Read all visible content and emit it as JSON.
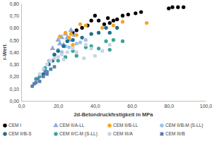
{
  "chart_data": {
    "type": "scatter",
    "x_label": "2d-Betondruckfestigkeit in MPa",
    "y_label": "r-Wert",
    "xlim": [
      0,
      100
    ],
    "xticks": [
      {
        "value": 0,
        "label": "0,0"
      },
      {
        "value": 20,
        "label": "20,0"
      },
      {
        "value": 40,
        "label": "40,0"
      },
      {
        "value": 60,
        "label": "60,0"
      },
      {
        "value": 80,
        "label": "80,0"
      },
      {
        "value": 100,
        "label": "100,0"
      }
    ],
    "ylim": [
      0,
      0.8
    ],
    "yticks": [
      {
        "value": 0,
        "label": "0,00"
      },
      {
        "value": 0.1,
        "label": "0,10"
      },
      {
        "value": 0.2,
        "label": "0,20"
      },
      {
        "value": 0.3,
        "label": "0,30"
      },
      {
        "value": 0.4,
        "label": "0,40"
      },
      {
        "value": 0.5,
        "label": "0,50"
      },
      {
        "value": 0.6,
        "label": "0,60"
      },
      {
        "value": 0.7,
        "label": "0,70"
      },
      {
        "value": 0.8,
        "label": "0,80"
      }
    ],
    "grid": false,
    "legend": "bottom",
    "series": [
      {
        "name": "CEM I",
        "color": "#000000",
        "marker": "circle",
        "x": [
          28,
          30,
          33,
          36,
          38,
          40,
          42,
          45,
          47,
          48,
          50,
          52,
          55,
          58,
          62,
          65,
          80,
          82,
          85,
          88
        ],
        "values": [
          0.56,
          0.58,
          0.6,
          0.62,
          0.66,
          0.7,
          0.66,
          0.63,
          0.68,
          0.64,
          0.66,
          0.67,
          0.7,
          0.71,
          0.72,
          0.73,
          0.76,
          0.77,
          0.77,
          0.77
        ]
      },
      {
        "name": "CEM II/A-LL",
        "color": "#8faadc",
        "marker": "triangle",
        "x": [
          17,
          20,
          21,
          22,
          23,
          24,
          25,
          26,
          27,
          29
        ],
        "values": [
          0.43,
          0.5,
          0.47,
          0.52,
          0.46,
          0.55,
          0.52,
          0.5,
          0.58,
          0.54
        ]
      },
      {
        "name": "CEM II/B-LL",
        "color": "#f5a623",
        "marker": "circle",
        "x": [
          21,
          24,
          26,
          27,
          28,
          30,
          32,
          35,
          44,
          50,
          55,
          68
        ],
        "values": [
          0.53,
          0.56,
          0.52,
          0.55,
          0.46,
          0.54,
          0.63,
          0.62,
          0.6,
          0.62,
          0.65,
          0.64
        ]
      },
      {
        "name": "CEM II/B-M (S-LL)",
        "color": "#9dc3e6",
        "marker": "circle",
        "x": [
          15,
          18,
          20,
          22,
          24,
          26,
          30,
          32,
          35
        ],
        "values": [
          0.33,
          0.38,
          0.42,
          0.4,
          0.45,
          0.44,
          0.47,
          0.48,
          0.5
        ]
      },
      {
        "name": "CEM II/B-S",
        "color": "#1f6f8b",
        "marker": "circle",
        "x": [
          12,
          15,
          17,
          18,
          20,
          23,
          25,
          28,
          33,
          38,
          42,
          46,
          48,
          52
        ],
        "values": [
          0.22,
          0.3,
          0.33,
          0.38,
          0.41,
          0.45,
          0.49,
          0.5,
          0.52,
          0.55,
          0.56,
          0.6,
          0.56,
          0.6
        ]
      },
      {
        "name": "CEM II/C-M (S-LL)",
        "color": "#3aa59b",
        "marker": "circle",
        "x": [
          8,
          10,
          13,
          14,
          20,
          24,
          28,
          30,
          35,
          38,
          42,
          46,
          48,
          50,
          55
        ],
        "values": [
          0.18,
          0.2,
          0.27,
          0.24,
          0.33,
          0.36,
          0.41,
          0.37,
          0.44,
          0.45,
          0.43,
          0.49,
          0.42,
          0.5,
          0.49
        ]
      },
      {
        "name": "CEM III/A",
        "color": "#c9d3e3",
        "marker": "square",
        "x": [
          10,
          12,
          14,
          16,
          18,
          20,
          22,
          23,
          25,
          28,
          30,
          34,
          35,
          38,
          40,
          44,
          48
        ],
        "values": [
          0.22,
          0.26,
          0.3,
          0.33,
          0.35,
          0.36,
          0.38,
          0.34,
          0.4,
          0.43,
          0.4,
          0.35,
          0.46,
          0.43,
          0.37,
          0.41,
          0.46
        ]
      },
      {
        "name": "CEM III/B",
        "color": "#5b7db1",
        "marker": "square",
        "x": [
          6,
          7,
          8,
          9,
          10,
          12,
          13,
          14,
          16,
          18
        ],
        "values": [
          0.12,
          0.14,
          0.15,
          0.18,
          0.16,
          0.2,
          0.24,
          0.22,
          0.26,
          0.28
        ]
      }
    ]
  }
}
